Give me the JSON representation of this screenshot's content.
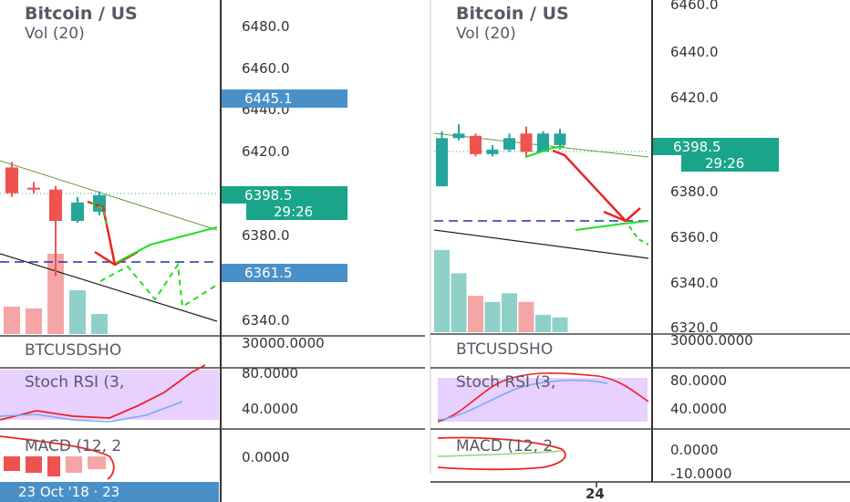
{
  "left_pane": {
    "title": "Bitcoin / US",
    "subtitle": "Vol (20)",
    "price_ticks": [
      "6480.0",
      "6460.0",
      "6440.0",
      "6420.0",
      "6380.0",
      "6340.0"
    ],
    "badges": {
      "price_blue": "6445.1",
      "price_green": "6398.5",
      "countdown": "29:26",
      "level_blue": "6361.5"
    },
    "indicator_labels": {
      "btcusd_short": "BTCUSDSHO",
      "stoch_rsi": "Stoch RSI (3,",
      "macd": "MACD (12, 2"
    },
    "indicator_ticks": [
      "30000.0000",
      "80.0000",
      "40.0000",
      "0.0000"
    ],
    "date_label": "23 Oct '18 · 23"
  },
  "right_pane": {
    "title": "Bitcoin / US",
    "subtitle": "Vol (20)",
    "price_ticks": [
      "6460.0",
      "6440.0",
      "6420.0",
      "6380.0",
      "6360.0",
      "6340.0",
      "6320.0"
    ],
    "badges": {
      "price_green": "6398.5",
      "countdown": "29:26"
    },
    "indicator_labels": {
      "btcusd_short": "BTCUSDSHO",
      "stoch_rsi": "Stoch RSI (3,",
      "macd": "MACD (12, 2"
    },
    "indicator_ticks": [
      "30000.0000",
      "80.0000",
      "40.0000",
      "0.0000",
      "-10.0000"
    ],
    "date_label": "24"
  },
  "colors": {
    "bull": "#26a69a",
    "bear": "#ef5350",
    "axis_badge_blue": "#4a90c8",
    "axis_badge_green": "#1aa58a",
    "stoch_bg": "#e8d0ff",
    "arrow_red": "#ee2222",
    "projection_green": "#22dd22",
    "level_line": "#2233aa"
  },
  "chart_data": [
    {
      "type": "candlestick",
      "title": "Bitcoin / US",
      "ylim": [
        6330,
        6490
      ],
      "candles": [
        {
          "open": 6412,
          "high": 6415,
          "low": 6396,
          "close": 6398
        },
        {
          "open": 6401,
          "high": 6404,
          "low": 6398,
          "close": 6400
        },
        {
          "open": 6400,
          "high": 6402,
          "low": 6353,
          "close": 6383
        },
        {
          "open": 6383,
          "high": 6396,
          "low": 6382,
          "close": 6393
        },
        {
          "open": 6388,
          "high": 6399,
          "low": 6386,
          "close": 6397
        }
      ],
      "volume": [
        0.3,
        0.28,
        0.88,
        0.48,
        0.22
      ]
    },
    {
      "type": "candlestick",
      "title": "Bitcoin / US",
      "ylim": [
        6320,
        6460
      ],
      "candles": [
        {
          "open": 6382,
          "high": 6406,
          "low": 6382,
          "close": 6403
        },
        {
          "open": 6403,
          "high": 6409,
          "low": 6402,
          "close": 6405
        },
        {
          "open": 6404,
          "high": 6405,
          "low": 6395,
          "close": 6396
        },
        {
          "open": 6396,
          "high": 6400,
          "low": 6395,
          "close": 6398
        },
        {
          "open": 6398,
          "high": 6405,
          "low": 6397,
          "close": 6403
        },
        {
          "open": 6405,
          "high": 6408,
          "low": 6395,
          "close": 6397
        },
        {
          "open": 6397,
          "high": 6406,
          "low": 6397,
          "close": 6405
        },
        {
          "open": 6400,
          "high": 6407,
          "low": 6398,
          "close": 6405
        }
      ],
      "volume": [
        0.95,
        0.68,
        0.42,
        0.35,
        0.45,
        0.35,
        0.2,
        0.17
      ]
    }
  ]
}
